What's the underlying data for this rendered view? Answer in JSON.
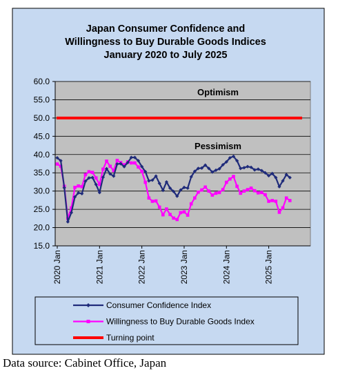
{
  "source_note": "Data source: Cabinet Office, Japan",
  "chart_data": {
    "type": "line",
    "title_lines": [
      "Japan Consumer Confidence and",
      "Willingness to Buy Durable Goods Indices",
      "January 2020 to July 2025"
    ],
    "xlabel": "",
    "ylabel": "",
    "ylim": [
      15,
      60
    ],
    "yticks": [
      "15.0",
      "20.0",
      "25.0",
      "30.0",
      "35.0",
      "40.0",
      "45.0",
      "50.0",
      "55.0",
      "60.0"
    ],
    "x_start": "2020-01",
    "x_months": 67,
    "x_tick_labels": [
      "2020 Jan",
      "2021 Jan",
      "2022 Jan",
      "2023 Jan",
      "2024 Jan",
      "2025 Jan"
    ],
    "grid": true,
    "legend_position": "bottom",
    "zones": [
      {
        "text": "Optimism",
        "value": 57
      },
      {
        "text": "Pessimism",
        "value": 42.2
      }
    ],
    "series": [
      {
        "name": "Consumer Confidence Index",
        "color": "#1f2b7a",
        "marker": "diamond",
        "values": [
          39.1,
          38.3,
          30.9,
          21.6,
          24.1,
          28.4,
          29.5,
          29.3,
          32.7,
          33.6,
          33.7,
          31.8,
          29.6,
          33.8,
          36.1,
          34.7,
          34.1,
          37.4,
          37.5,
          36.7,
          37.8,
          39.2,
          39.2,
          38.3,
          36.7,
          35.3,
          32.8,
          33.0,
          34.1,
          32.1,
          30.2,
          32.5,
          30.8,
          29.9,
          28.6,
          30.3,
          31.0,
          30.8,
          33.9,
          35.4,
          36.2,
          36.3,
          37.1,
          36.2,
          35.2,
          35.7,
          36.1,
          37.2,
          38.0,
          39.1,
          39.5,
          38.3,
          36.2,
          36.4,
          36.7,
          36.5,
          35.8,
          36.0,
          35.6,
          35.0,
          34.2,
          34.8,
          33.7,
          31.2,
          32.8,
          34.5,
          33.7
        ]
      },
      {
        "name": "Willingness to Buy Durable Goods Index",
        "color": "#ff00ff",
        "marker": "square",
        "values": [
          37.4,
          36.8,
          31.3,
          22.5,
          25.4,
          31.0,
          31.4,
          31.2,
          34.5,
          35.3,
          35.1,
          33.6,
          31.8,
          36.0,
          38.2,
          36.8,
          35.6,
          38.4,
          37.8,
          37.2,
          38.0,
          37.7,
          37.7,
          36.6,
          35.4,
          32.4,
          28.1,
          27.2,
          27.3,
          25.6,
          23.5,
          25.1,
          23.6,
          22.6,
          22.2,
          24.1,
          24.3,
          23.4,
          26.5,
          28.1,
          29.7,
          30.3,
          31.1,
          30.0,
          28.9,
          29.4,
          29.6,
          30.4,
          32.4,
          33.3,
          34.0,
          31.3,
          29.4,
          30.0,
          30.4,
          30.8,
          30.1,
          29.5,
          29.6,
          29.0,
          27.2,
          27.4,
          27.2,
          24.2,
          25.4,
          28.1,
          27.4
        ]
      },
      {
        "name": "Turning point",
        "color": "#ff0000",
        "marker": "none",
        "values": [
          50.0,
          50.0
        ]
      }
    ]
  }
}
